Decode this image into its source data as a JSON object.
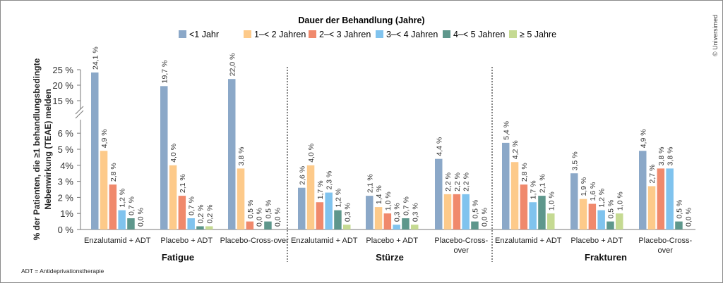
{
  "chart_data": {
    "type": "bar",
    "legend_title": "Dauer der Behandlung (Jahre)",
    "legend_position": "top-center",
    "series": [
      {
        "name": "<1 Jahr",
        "color": "#8ba8c8"
      },
      {
        "name": "1–< 2 Jahren",
        "color": "#fdca8a"
      },
      {
        "name": "2–< 3 Jahren",
        "color": "#f0896c"
      },
      {
        "name": "3–< 4 Jahren",
        "color": "#80c3ee"
      },
      {
        "name": "4–< 5 Jahren",
        "color": "#5e978c"
      },
      {
        "name": "≥ 5 Jahre",
        "color": "#c5da92"
      }
    ],
    "ylabel": "% der Patienten, die ≥1 behandlungsbedingte Nebenwirkung (TEAE) melden",
    "y_axis_break": true,
    "yticks_lower": [
      "0 %",
      "1%",
      "2 %",
      "3 %",
      "4%",
      "5 %",
      "6 %"
    ],
    "yticks_upper": [
      "15 %",
      "20 %",
      "25 %"
    ],
    "ylim_lower": [
      0,
      6.4
    ],
    "ylim_upper": [
      14,
      26
    ],
    "groups": [
      {
        "name": "Fatigue",
        "categories": [
          {
            "label": [
              "Enzalutamid + ADT"
            ],
            "values": [
              24.1,
              4.9,
              2.8,
              1.2,
              0.7,
              0.0
            ],
            "labels": [
              "24,1 %",
              "4,9 %",
              "2,8 %",
              "1,2 %",
              "0,7 %",
              "0,0 %"
            ]
          },
          {
            "label": [
              "Placebo + ADT"
            ],
            "values": [
              19.7,
              4.0,
              2.1,
              0.7,
              0.2,
              0.2
            ],
            "labels": [
              "19,7 %",
              "4,0 %",
              "2,1 %",
              "0,7 %",
              "0,2 %",
              "0,2 %"
            ]
          },
          {
            "label": [
              "Placebo-Cross-over"
            ],
            "values": [
              22.0,
              3.8,
              0.5,
              0.0,
              0.5,
              0.0
            ],
            "labels": [
              "22,0 %",
              "3,8 %",
              "0,5 %",
              "0,0 %",
              "0,5 %",
              "0,0 %"
            ]
          }
        ]
      },
      {
        "name": "Stürze",
        "categories": [
          {
            "label": [
              "Enzalutamid + ADT"
            ],
            "values": [
              2.6,
              4.0,
              1.7,
              2.3,
              1.2,
              0.3
            ],
            "labels": [
              "2,6 %",
              "4,0 %",
              "1,7 %",
              "2,3 %",
              "1,2 %",
              "0,3 %"
            ]
          },
          {
            "label": [
              "Placebo + ADT"
            ],
            "values": [
              2.1,
              1.4,
              1.0,
              0.3,
              0.7,
              0.3
            ],
            "labels": [
              "2,1 %",
              "1,4 %",
              "1,0 %",
              "0,3 %",
              "0,7 %",
              "0,3 %"
            ]
          },
          {
            "label": [
              "Placebo-Cross-",
              "over"
            ],
            "values": [
              4.4,
              2.2,
              2.2,
              2.2,
              0.5,
              0.0
            ],
            "labels": [
              "4,4 %",
              "2,2 %",
              "2,2 %",
              "2,2 %",
              "0,5 %",
              "0,0 %"
            ]
          }
        ]
      },
      {
        "name": "Frakturen",
        "categories": [
          {
            "label": [
              "Enzalutamid + ADT"
            ],
            "values": [
              5.4,
              4.2,
              2.8,
              1.7,
              2.1,
              1.0
            ],
            "labels": [
              "5,4 %",
              "4,2 %",
              "2,8 %",
              "1,7 %",
              "2,1 %",
              "1,0 %"
            ]
          },
          {
            "label": [
              "Placebo + ADT"
            ],
            "values": [
              3.5,
              1.9,
              1.6,
              1.2,
              0.5,
              1.0
            ],
            "labels": [
              "3,5 %",
              "1,9 %",
              "1,6 %",
              "1,2 %",
              "0,5 %",
              "1,0 %"
            ]
          },
          {
            "label": [
              "Placebo-Cross-",
              "over"
            ],
            "values": [
              4.9,
              2.7,
              3.8,
              3.8,
              0.5,
              0.0
            ],
            "labels": [
              "4,9 %",
              "2,7 %",
              "3,8 %",
              "3,8 %",
              "0,5 %",
              "0,0 %"
            ]
          }
        ]
      }
    ],
    "footnote": "ADT = Antideprivationstherapie",
    "copyright": "© Universimed"
  }
}
